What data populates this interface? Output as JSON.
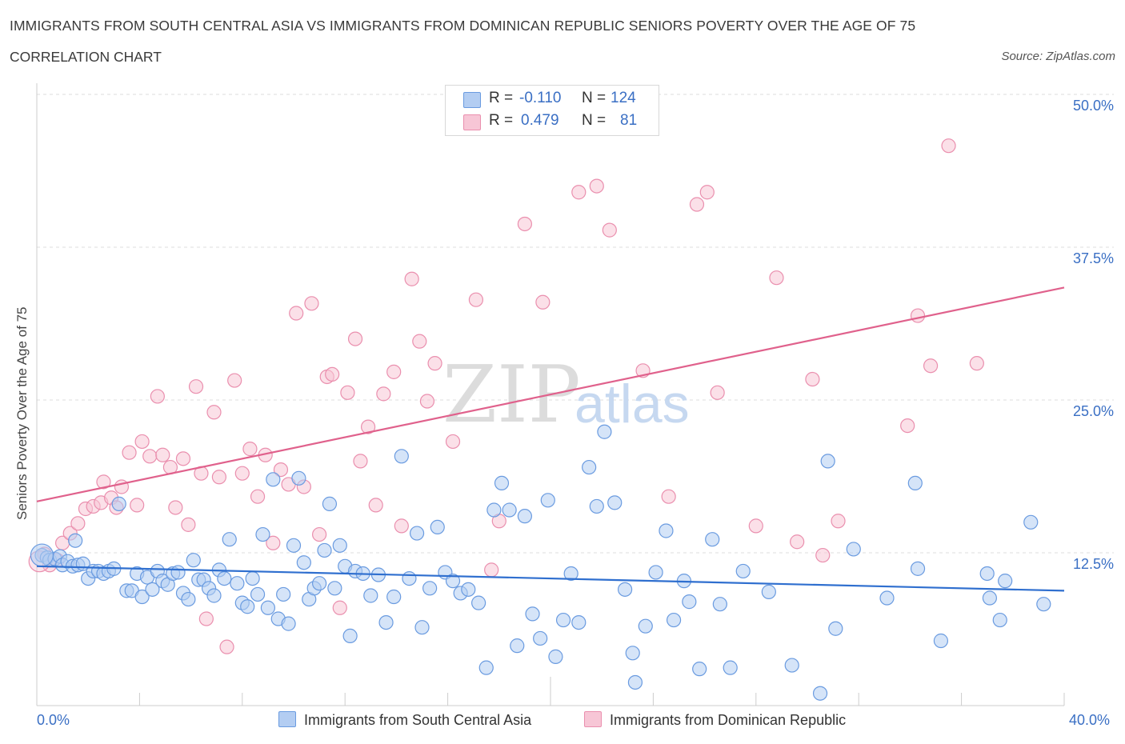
{
  "header": {
    "title": "IMMIGRANTS FROM SOUTH CENTRAL ASIA VS IMMIGRANTS FROM DOMINICAN REPUBLIC SENIORS POVERTY OVER THE AGE OF 75",
    "subtitle": "CORRELATION CHART",
    "source": "Source: ZipAtlas.com"
  },
  "legend": {
    "row1": {
      "r_label": "R =",
      "r_value": "-0.110",
      "n_label": "N =",
      "n_value": "124"
    },
    "row2": {
      "r_label": "R =",
      "r_value": "0.479",
      "n_label": "N =",
      "n_value": "81"
    }
  },
  "watermark": {
    "zip": "ZIP",
    "atlas": "atlas"
  },
  "colors": {
    "blue_fill": "#b3cdf2",
    "blue_stroke": "#6a9be0",
    "blue_line": "#2f6fcf",
    "pink_fill": "#f7c6d6",
    "pink_stroke": "#ea8fae",
    "pink_line": "#e0618c",
    "axis_label": "#3a6fc4"
  },
  "chart_data": {
    "type": "scatter",
    "title": "IMMIGRANTS FROM SOUTH CENTRAL ASIA VS IMMIGRANTS FROM DOMINICAN REPUBLIC SENIORS POVERTY OVER THE AGE OF 75",
    "xlabel": "",
    "ylabel": "Seniors Poverty Over the Age of 75",
    "xlim": [
      0,
      40
    ],
    "ylim": [
      0,
      50
    ],
    "x_tick_labels": [
      "0.0%",
      "40.0%"
    ],
    "y_ticks": [
      12.5,
      25.0,
      37.5,
      50.0
    ],
    "y_tick_labels": [
      "12.5%",
      "25.0%",
      "37.5%",
      "50.0%"
    ],
    "grid": true,
    "legend_position": "top-center",
    "series": [
      {
        "name": "Immigrants from South Central Asia",
        "color": "#6a9be0",
        "trend": {
          "x0": 0,
          "y0": 11.4,
          "x1": 40,
          "y1": 9.4
        },
        "points": [
          [
            0.2,
            12.3
          ],
          [
            0.4,
            12.1
          ],
          [
            0.5,
            11.9
          ],
          [
            0.7,
            12.0
          ],
          [
            0.9,
            12.2
          ],
          [
            1.0,
            11.5
          ],
          [
            1.2,
            11.8
          ],
          [
            1.4,
            11.4
          ],
          [
            1.5,
            13.5
          ],
          [
            1.6,
            11.5
          ],
          [
            1.8,
            11.6
          ],
          [
            2.0,
            10.4
          ],
          [
            2.2,
            11.0
          ],
          [
            2.4,
            11.0
          ],
          [
            2.6,
            10.8
          ],
          [
            2.8,
            11.0
          ],
          [
            3.0,
            11.2
          ],
          [
            3.2,
            16.5
          ],
          [
            3.5,
            9.4
          ],
          [
            3.7,
            9.4
          ],
          [
            3.9,
            10.8
          ],
          [
            4.1,
            8.9
          ],
          [
            4.3,
            10.5
          ],
          [
            4.5,
            9.5
          ],
          [
            4.7,
            11.0
          ],
          [
            4.9,
            10.2
          ],
          [
            5.1,
            9.9
          ],
          [
            5.3,
            10.8
          ],
          [
            5.5,
            10.9
          ],
          [
            5.7,
            9.2
          ],
          [
            5.9,
            8.7
          ],
          [
            6.1,
            11.9
          ],
          [
            6.3,
            10.3
          ],
          [
            6.5,
            10.3
          ],
          [
            6.7,
            9.6
          ],
          [
            6.9,
            9.0
          ],
          [
            7.1,
            11.1
          ],
          [
            7.3,
            10.4
          ],
          [
            7.5,
            13.6
          ],
          [
            7.8,
            10.0
          ],
          [
            8.0,
            8.4
          ],
          [
            8.2,
            8.1
          ],
          [
            8.4,
            10.4
          ],
          [
            8.6,
            9.1
          ],
          [
            8.8,
            14.0
          ],
          [
            9.0,
            8.0
          ],
          [
            9.2,
            18.5
          ],
          [
            9.4,
            7.1
          ],
          [
            9.6,
            9.1
          ],
          [
            9.8,
            6.7
          ],
          [
            10.0,
            13.1
          ],
          [
            10.2,
            18.6
          ],
          [
            10.4,
            11.7
          ],
          [
            10.6,
            8.7
          ],
          [
            10.8,
            9.6
          ],
          [
            11.0,
            10.0
          ],
          [
            11.2,
            12.7
          ],
          [
            11.4,
            16.5
          ],
          [
            11.6,
            9.6
          ],
          [
            11.8,
            13.1
          ],
          [
            12.0,
            11.4
          ],
          [
            12.2,
            5.7
          ],
          [
            12.4,
            11.0
          ],
          [
            12.7,
            10.8
          ],
          [
            13.0,
            9.0
          ],
          [
            13.3,
            10.7
          ],
          [
            13.6,
            6.8
          ],
          [
            13.9,
            8.9
          ],
          [
            14.2,
            20.4
          ],
          [
            14.5,
            10.4
          ],
          [
            14.8,
            14.1
          ],
          [
            15.0,
            6.4
          ],
          [
            15.3,
            9.6
          ],
          [
            15.6,
            14.6
          ],
          [
            15.9,
            10.9
          ],
          [
            16.2,
            10.2
          ],
          [
            16.5,
            9.2
          ],
          [
            16.8,
            9.5
          ],
          [
            17.2,
            8.4
          ],
          [
            17.5,
            3.1
          ],
          [
            17.8,
            16.0
          ],
          [
            18.1,
            18.2
          ],
          [
            18.4,
            16.0
          ],
          [
            18.7,
            4.9
          ],
          [
            19.0,
            15.5
          ],
          [
            19.3,
            7.5
          ],
          [
            19.6,
            5.5
          ],
          [
            19.9,
            16.8
          ],
          [
            20.2,
            4.0
          ],
          [
            20.5,
            7.0
          ],
          [
            20.8,
            10.8
          ],
          [
            21.1,
            6.8
          ],
          [
            21.5,
            19.5
          ],
          [
            21.8,
            16.3
          ],
          [
            22.1,
            22.4
          ],
          [
            22.5,
            16.6
          ],
          [
            22.9,
            9.5
          ],
          [
            23.3,
            1.9
          ],
          [
            23.2,
            4.3
          ],
          [
            23.7,
            6.5
          ],
          [
            24.1,
            10.9
          ],
          [
            24.5,
            14.3
          ],
          [
            24.8,
            7.0
          ],
          [
            25.2,
            10.2
          ],
          [
            25.4,
            8.5
          ],
          [
            25.8,
            3.0
          ],
          [
            26.3,
            13.6
          ],
          [
            26.6,
            8.3
          ],
          [
            27.0,
            3.1
          ],
          [
            27.5,
            11.0
          ],
          [
            28.5,
            9.3
          ],
          [
            29.4,
            3.3
          ],
          [
            30.5,
            1.0
          ],
          [
            30.8,
            20.0
          ],
          [
            31.1,
            6.3
          ],
          [
            31.8,
            12.8
          ],
          [
            33.1,
            8.8
          ],
          [
            34.2,
            18.2
          ],
          [
            34.3,
            11.2
          ],
          [
            35.2,
            5.3
          ],
          [
            37.0,
            10.8
          ],
          [
            37.1,
            8.8
          ],
          [
            37.5,
            7.0
          ],
          [
            38.7,
            15.0
          ],
          [
            37.7,
            10.2
          ],
          [
            39.2,
            8.3
          ]
        ]
      },
      {
        "name": "Immigrants from Dominican Republic",
        "color": "#ea8fae",
        "trend": {
          "x0": 0,
          "y0": 16.7,
          "x1": 40,
          "y1": 34.2
        },
        "points": [
          [
            0.3,
            12.4
          ],
          [
            0.5,
            11.5
          ],
          [
            0.8,
            11.9
          ],
          [
            1.0,
            13.3
          ],
          [
            1.3,
            14.1
          ],
          [
            1.6,
            14.9
          ],
          [
            1.9,
            16.1
          ],
          [
            2.2,
            16.3
          ],
          [
            2.5,
            16.6
          ],
          [
            2.6,
            18.3
          ],
          [
            2.9,
            17.0
          ],
          [
            3.1,
            16.2
          ],
          [
            3.3,
            17.9
          ],
          [
            3.6,
            20.7
          ],
          [
            3.9,
            16.4
          ],
          [
            4.1,
            21.6
          ],
          [
            4.4,
            20.4
          ],
          [
            4.7,
            25.3
          ],
          [
            4.9,
            20.5
          ],
          [
            5.2,
            19.5
          ],
          [
            5.4,
            16.2
          ],
          [
            5.7,
            20.2
          ],
          [
            5.9,
            14.8
          ],
          [
            6.2,
            26.1
          ],
          [
            6.4,
            19.0
          ],
          [
            6.6,
            7.1
          ],
          [
            6.9,
            24.0
          ],
          [
            7.1,
            18.7
          ],
          [
            7.4,
            4.8
          ],
          [
            7.7,
            26.6
          ],
          [
            8.0,
            19.0
          ],
          [
            8.3,
            21.0
          ],
          [
            8.6,
            17.1
          ],
          [
            8.9,
            20.5
          ],
          [
            9.2,
            13.3
          ],
          [
            9.5,
            19.3
          ],
          [
            9.8,
            18.1
          ],
          [
            10.1,
            32.1
          ],
          [
            10.4,
            17.9
          ],
          [
            10.7,
            32.9
          ],
          [
            11.0,
            14.0
          ],
          [
            11.3,
            26.9
          ],
          [
            11.5,
            27.1
          ],
          [
            11.8,
            8.0
          ],
          [
            12.1,
            25.6
          ],
          [
            12.4,
            30.0
          ],
          [
            12.6,
            20.0
          ],
          [
            12.9,
            22.8
          ],
          [
            13.2,
            16.4
          ],
          [
            13.5,
            25.5
          ],
          [
            13.9,
            27.3
          ],
          [
            14.2,
            14.7
          ],
          [
            14.6,
            34.9
          ],
          [
            14.9,
            29.8
          ],
          [
            15.2,
            24.9
          ],
          [
            15.5,
            28.0
          ],
          [
            16.2,
            21.6
          ],
          [
            17.1,
            33.2
          ],
          [
            17.7,
            11.1
          ],
          [
            18.0,
            15.1
          ],
          [
            19.0,
            39.4
          ],
          [
            19.7,
            33.0
          ],
          [
            21.1,
            42.0
          ],
          [
            21.8,
            42.5
          ],
          [
            22.3,
            38.9
          ],
          [
            23.6,
            27.4
          ],
          [
            24.6,
            17.1
          ],
          [
            25.7,
            41.0
          ],
          [
            26.1,
            42.0
          ],
          [
            26.5,
            25.6
          ],
          [
            28.0,
            14.7
          ],
          [
            28.8,
            35.0
          ],
          [
            29.6,
            13.4
          ],
          [
            30.2,
            26.7
          ],
          [
            30.6,
            12.3
          ],
          [
            31.2,
            15.1
          ],
          [
            33.9,
            22.9
          ],
          [
            34.3,
            31.9
          ],
          [
            34.8,
            27.8
          ],
          [
            35.5,
            45.8
          ],
          [
            36.6,
            28.0
          ]
        ]
      }
    ]
  },
  "bottom_legend": {
    "item1": "Immigrants from South Central Asia",
    "item2": "Immigrants from Dominican Republic"
  }
}
